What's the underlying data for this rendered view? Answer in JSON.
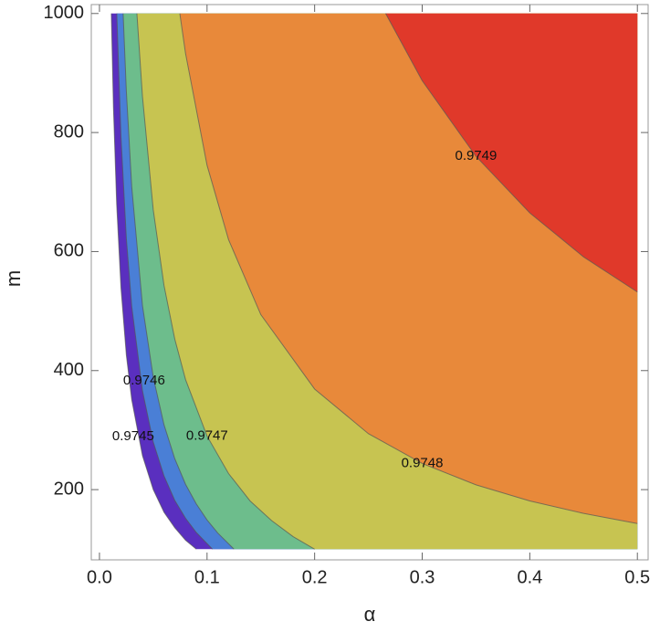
{
  "chart_data": {
    "type": "contour",
    "x_label": "α",
    "y_label": "m",
    "xlim": [
      -0.0076,
      0.51
    ],
    "ylim": [
      82,
      1015
    ],
    "xticks": [
      {
        "value": 0,
        "label": "0.0"
      },
      0.1,
      0.2,
      0.3,
      0.4,
      0.5
    ],
    "yticks": [
      200,
      400,
      600,
      800,
      1000
    ],
    "colors": [
      "#5a2fbf",
      "#4a7fd6",
      "#6dbd8c",
      "#c7c451",
      "#e8893a",
      "#e0392a"
    ],
    "contours": [
      {
        "level": null,
        "x": [
          0.011,
          0.013,
          0.016,
          0.02,
          0.025,
          0.03,
          0.04,
          0.05,
          0.06,
          0.07,
          0.08,
          0.09
        ],
        "y": [
          1000,
          842,
          680,
          539,
          426,
          351,
          257,
          200,
          162,
          136,
          115,
          100
        ]
      },
      {
        "level": 0.9745,
        "x": [
          0.0161,
          0.02,
          0.025,
          0.03,
          0.04,
          0.05,
          0.06,
          0.07,
          0.08,
          0.09,
          0.105
        ],
        "y": [
          1000,
          793,
          622,
          508,
          366,
          280,
          223,
          182,
          152,
          128,
          100
        ]
      },
      {
        "level": 0.9746,
        "x": [
          0.022,
          0.025,
          0.03,
          0.04,
          0.05,
          0.06,
          0.07,
          0.08,
          0.09,
          0.1,
          0.11,
          0.125
        ],
        "y": [
          1000,
          869,
          709,
          509,
          389,
          309,
          252,
          209,
          176,
          149,
          127,
          100
        ]
      },
      {
        "level": 0.9747,
        "x": [
          0.0348,
          0.04,
          0.05,
          0.06,
          0.07,
          0.08,
          0.1,
          0.12,
          0.14,
          0.16,
          0.18,
          0.2
        ],
        "y": [
          1000,
          860,
          670,
          543,
          453,
          385,
          290,
          227,
          181,
          148,
          121,
          100
        ]
      },
      {
        "level": 0.9748,
        "x": [
          0.0747,
          0.08,
          0.1,
          0.12,
          0.15,
          0.2,
          0.25,
          0.3,
          0.35,
          0.4,
          0.45,
          0.5
        ],
        "y": [
          1000,
          933,
          745,
          620,
          494,
          369,
          294,
          244,
          208,
          181,
          160,
          143
        ]
      },
      {
        "level": 0.9749,
        "x": [
          0.266,
          0.3,
          0.35,
          0.4,
          0.45,
          0.5
        ],
        "y": [
          1000,
          887,
          760,
          665,
          591,
          532
        ]
      }
    ]
  }
}
